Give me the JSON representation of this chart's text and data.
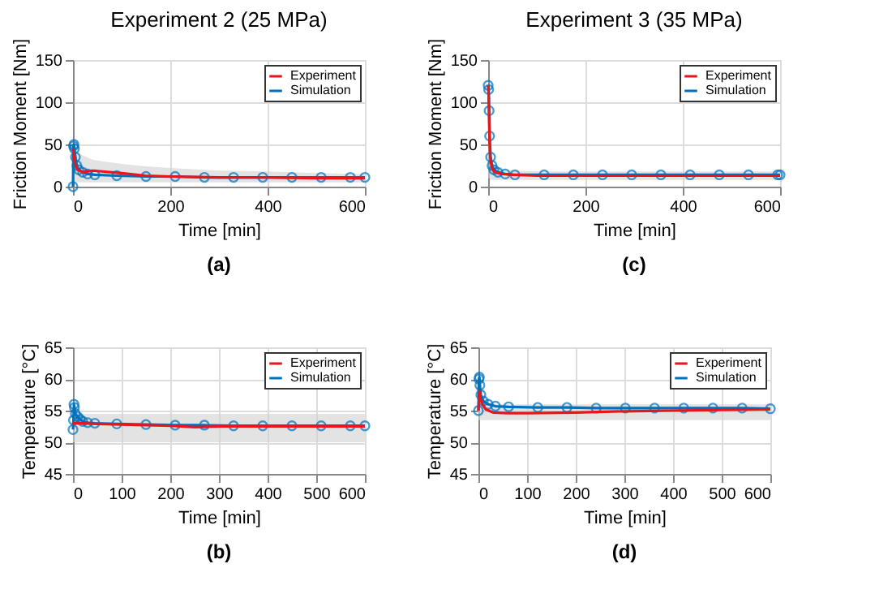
{
  "chart_data": [
    {
      "type": "line",
      "title": "Experiment 2 (25 MPa)",
      "xlabel": "Time [min]",
      "ylabel": "Friction Moment [Nm]",
      "annotations": [
        "(a)"
      ],
      "xlim": [
        0,
        600
      ],
      "xticks": [
        0,
        200,
        400,
        600
      ],
      "ylim": [
        0,
        150
      ],
      "yticks": [
        0,
        50,
        100,
        150
      ],
      "grid": true,
      "legend": "top right",
      "series": [
        {
          "name": "Experiment",
          "color": "#e8151b",
          "x": [
            0,
            2,
            5,
            10,
            20,
            40,
            60,
            100,
            150,
            200,
            300,
            400,
            500,
            600
          ],
          "values": [
            45,
            35,
            25,
            20,
            17,
            19,
            18,
            16,
            13,
            12,
            11,
            11,
            10,
            10
          ],
          "lower": [
            5,
            5,
            5,
            5,
            5,
            5,
            5,
            5,
            5,
            5,
            5,
            5,
            5,
            5
          ],
          "upper": [
            50,
            45,
            42,
            40,
            37,
            32,
            30,
            27,
            24,
            22,
            19,
            18,
            16,
            15
          ]
        },
        {
          "name": "Simulation",
          "color": "#0072bd",
          "marker": "circle",
          "x": [
            0,
            1,
            2,
            3,
            5,
            8,
            12,
            20,
            30,
            45,
            90,
            150,
            210,
            270,
            330,
            390,
            450,
            510,
            570,
            600
          ],
          "values": [
            0,
            48,
            50,
            45,
            35,
            25,
            20,
            17,
            15,
            14,
            13,
            12,
            12,
            11,
            11,
            11,
            11,
            11,
            11,
            11
          ]
        }
      ]
    },
    {
      "type": "line",
      "title": "Experiment 3 (35 MPa)",
      "xlabel": "Time [min]",
      "ylabel": "Friction Moment [Nm]",
      "annotations": [
        "(c)"
      ],
      "xlim": [
        0,
        600
      ],
      "xticks": [
        0,
        200,
        400,
        600
      ],
      "ylim": [
        0,
        150
      ],
      "yticks": [
        0,
        50,
        100,
        150
      ],
      "grid": true,
      "legend": "top right",
      "series": [
        {
          "name": "Experiment",
          "color": "#e8151b",
          "x": [
            0,
            1,
            2,
            3,
            5,
            8,
            12,
            20,
            30,
            50,
            100,
            200,
            300,
            400,
            500,
            600
          ],
          "values": [
            120,
            110,
            80,
            50,
            30,
            22,
            18,
            16,
            15,
            14,
            13,
            13,
            13,
            13,
            13,
            13
          ],
          "lower": [
            10,
            10,
            10,
            9,
            8,
            8,
            8,
            8,
            8,
            8,
            8,
            8,
            8,
            8,
            8,
            8
          ],
          "upper": [
            122,
            115,
            90,
            60,
            38,
            30,
            26,
            22,
            20,
            19,
            18,
            18,
            18,
            18,
            18,
            18
          ]
        },
        {
          "name": "Simulation",
          "color": "#0072bd",
          "marker": "circle",
          "x": [
            0,
            1,
            2,
            3,
            5,
            8,
            12,
            20,
            35,
            55,
            115,
            175,
            235,
            295,
            355,
            415,
            475,
            535,
            595,
            600
          ],
          "values": [
            120,
            115,
            90,
            60,
            35,
            25,
            20,
            17,
            15,
            14,
            14,
            14,
            14,
            14,
            14,
            14,
            14,
            14,
            14,
            14
          ]
        }
      ]
    },
    {
      "type": "line",
      "xlabel": "Time [min]",
      "ylabel": "Temperature [°C]",
      "annotations": [
        "(b)"
      ],
      "xlim": [
        0,
        600
      ],
      "xticks": [
        0,
        100,
        200,
        300,
        400,
        500,
        600
      ],
      "ylim": [
        45,
        65
      ],
      "yticks": [
        45,
        50,
        55,
        60,
        65
      ],
      "grid": true,
      "legend": "top right",
      "series": [
        {
          "name": "Experiment",
          "color": "#e8151b",
          "x": [
            0,
            20,
            50,
            100,
            150,
            200,
            250,
            300,
            400,
            500,
            600
          ],
          "values": [
            53,
            53,
            52.9,
            52.8,
            52.7,
            52.6,
            52.4,
            52.5,
            52.5,
            52.5,
            52.5
          ],
          "lower": [
            50,
            50,
            50,
            50,
            50,
            50,
            50,
            50,
            50,
            50,
            50
          ],
          "upper": [
            54.5,
            54.5,
            54.5,
            54.5,
            54.5,
            54.5,
            54.5,
            54.5,
            54.5,
            54.5,
            54.5
          ]
        },
        {
          "name": "Simulation",
          "color": "#0072bd",
          "marker": "circle",
          "x": [
            0,
            1,
            2,
            3,
            5,
            10,
            15,
            20,
            30,
            45,
            90,
            150,
            210,
            270,
            330,
            390,
            450,
            510,
            570,
            600
          ],
          "values": [
            52,
            53.5,
            56,
            55.5,
            54.5,
            54,
            53.6,
            53.3,
            53.1,
            53,
            52.9,
            52.8,
            52.7,
            52.7,
            52.6,
            52.6,
            52.6,
            52.6,
            52.6,
            52.6
          ]
        }
      ]
    },
    {
      "type": "line",
      "xlabel": "Time [min]",
      "ylabel": "Temperature [°C]",
      "annotations": [
        "(d)"
      ],
      "xlim": [
        0,
        600
      ],
      "xticks": [
        0,
        100,
        200,
        300,
        400,
        500,
        600
      ],
      "ylim": [
        45,
        65
      ],
      "yticks": [
        45,
        50,
        55,
        60,
        65
      ],
      "grid": true,
      "legend": "top right",
      "series": [
        {
          "name": "Experiment",
          "color": "#e8151b",
          "x": [
            0,
            2,
            4,
            8,
            15,
            30,
            60,
            100,
            200,
            300,
            400,
            500,
            600
          ],
          "values": [
            55,
            58,
            57,
            56,
            55.2,
            54.7,
            54.6,
            54.6,
            54.7,
            54.9,
            55,
            55.1,
            55.2
          ],
          "lower": [
            53.5,
            53.5,
            53.5,
            53.5,
            53.5,
            53.5,
            53.5,
            53.5,
            53.5,
            53.5,
            53.5,
            53.5,
            53.5
          ],
          "upper": [
            59,
            59,
            58,
            57,
            56,
            56,
            56,
            56,
            56,
            56,
            56,
            56,
            56
          ]
        },
        {
          "name": "Simulation",
          "color": "#0072bd",
          "marker": "circle",
          "x": [
            0,
            1,
            2,
            3,
            5,
            10,
            20,
            35,
            62,
            122,
            182,
            242,
            302,
            362,
            422,
            482,
            542,
            600
          ],
          "values": [
            55,
            60,
            60.3,
            59,
            57.5,
            56.5,
            56,
            55.7,
            55.6,
            55.5,
            55.5,
            55.4,
            55.4,
            55.4,
            55.4,
            55.4,
            55.4,
            55.3
          ]
        }
      ]
    }
  ]
}
